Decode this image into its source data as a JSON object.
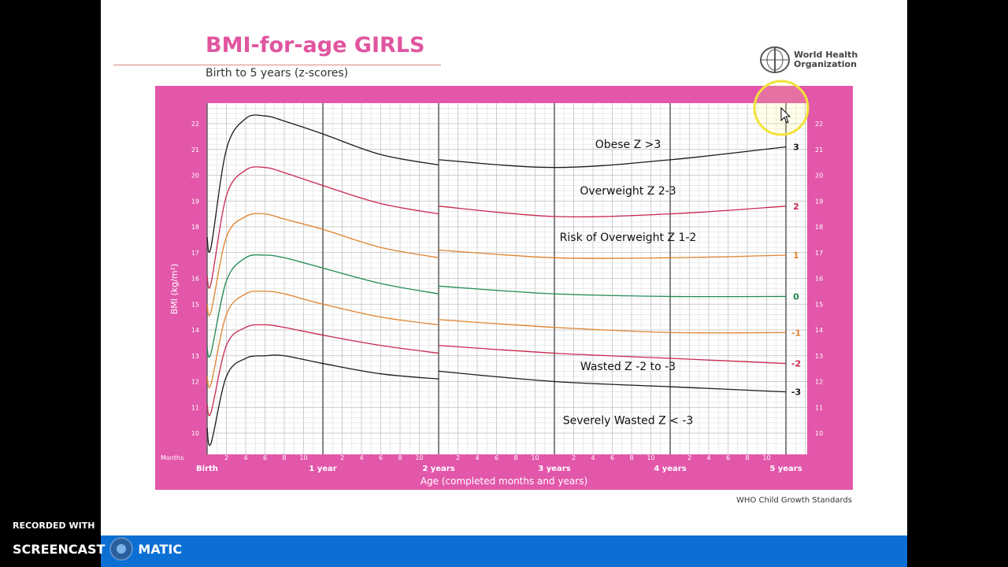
{
  "title": "BMI-for-age GIRLS",
  "subtitle": "Birth to 5 years (z-scores)",
  "who": {
    "line1": "World Health",
    "line2": "Organization"
  },
  "source": "WHO Child Growth Standards",
  "watermark": {
    "line1": "RECORDED WITH",
    "brand_left": "SCREENCAST",
    "brand_right": "MATIC"
  },
  "chart_data": {
    "type": "line",
    "title": "BMI-for-age GIRLS",
    "xlabel": "Age (completed months and years)",
    "ylabel": "BMI (kg/m²)",
    "ylim": [
      10,
      22
    ],
    "xlim_months": [
      0,
      60
    ],
    "months_label": "Months",
    "year_labels": [
      "Birth",
      "1 year",
      "2 years",
      "3 years",
      "4 years",
      "5 years"
    ],
    "month_ticks": [
      "2",
      "4",
      "6",
      "8",
      "10"
    ],
    "y_ticks": [
      10,
      11,
      12,
      13,
      14,
      15,
      16,
      17,
      18,
      19,
      20,
      21,
      22
    ],
    "series": [
      {
        "name": "3",
        "color": "#1a1a1a",
        "x": [
          0,
          0.4,
          2,
          4,
          6,
          8,
          12,
          18,
          24
        ],
        "y": [
          17.6,
          17.2,
          21.0,
          22.2,
          22.3,
          22.1,
          21.6,
          20.8,
          20.4
        ],
        "x2": [
          24,
          36,
          48,
          60
        ],
        "y2": [
          20.6,
          20.3,
          20.6,
          21.1
        ]
      },
      {
        "name": "2",
        "color": "#c9284f",
        "x": [
          0,
          0.4,
          2,
          4,
          6,
          8,
          12,
          18,
          24
        ],
        "y": [
          16.1,
          15.8,
          19.2,
          20.2,
          20.3,
          20.1,
          19.6,
          18.9,
          18.5
        ],
        "x2": [
          24,
          36,
          48,
          60
        ],
        "y2": [
          18.8,
          18.4,
          18.5,
          18.8
        ]
      },
      {
        "name": "1",
        "color": "#e0822e",
        "x": [
          0,
          0.4,
          2,
          4,
          6,
          8,
          12,
          18,
          24
        ],
        "y": [
          15.0,
          14.7,
          17.6,
          18.4,
          18.5,
          18.3,
          17.9,
          17.2,
          16.8
        ],
        "x2": [
          24,
          36,
          48,
          60
        ],
        "y2": [
          17.1,
          16.8,
          16.8,
          16.9
        ]
      },
      {
        "name": "0",
        "color": "#1f8a52",
        "x": [
          0,
          0.4,
          2,
          4,
          6,
          8,
          12,
          18,
          24
        ],
        "y": [
          13.3,
          13.1,
          15.9,
          16.8,
          16.9,
          16.8,
          16.4,
          15.8,
          15.4
        ],
        "x2": [
          24,
          36,
          48,
          60
        ],
        "y2": [
          15.7,
          15.4,
          15.3,
          15.3
        ]
      },
      {
        "name": "-1",
        "color": "#e0822e",
        "x": [
          0,
          0.4,
          2,
          4,
          6,
          8,
          12,
          18,
          24
        ],
        "y": [
          12.2,
          11.9,
          14.6,
          15.4,
          15.5,
          15.4,
          15.0,
          14.5,
          14.2
        ],
        "x2": [
          24,
          36,
          48,
          60
        ],
        "y2": [
          14.4,
          14.1,
          13.9,
          13.9
        ]
      },
      {
        "name": "-2",
        "color": "#c9284f",
        "x": [
          0,
          0.4,
          2,
          4,
          6,
          8,
          12,
          18,
          24
        ],
        "y": [
          11.1,
          10.8,
          13.4,
          14.1,
          14.2,
          14.1,
          13.8,
          13.4,
          13.1
        ],
        "x2": [
          24,
          36,
          48,
          60
        ],
        "y2": [
          13.4,
          13.1,
          12.9,
          12.7
        ]
      },
      {
        "name": "-3",
        "color": "#1a1a1a",
        "x": [
          0,
          0.4,
          2,
          4,
          6,
          8,
          12,
          18,
          24
        ],
        "y": [
          10.2,
          9.6,
          12.2,
          12.9,
          13.0,
          13.0,
          12.7,
          12.3,
          12.1
        ],
        "x2": [
          24,
          36,
          48,
          60
        ],
        "y2": [
          12.4,
          12.0,
          11.8,
          11.6
        ]
      }
    ],
    "annotations": [
      {
        "text": "Obese Z >3",
        "x": 42,
        "y": 21.2
      },
      {
        "text": "Overweight Z 2-3",
        "x": 42,
        "y": 19.4
      },
      {
        "text": "Risk of Overweight Z 1-2",
        "x": 42,
        "y": 17.6
      },
      {
        "text": "Wasted Z -2 to -3",
        "x": 42,
        "y": 12.6
      },
      {
        "text": "Severely Wasted Z < -3",
        "x": 42,
        "y": 10.5
      }
    ]
  }
}
